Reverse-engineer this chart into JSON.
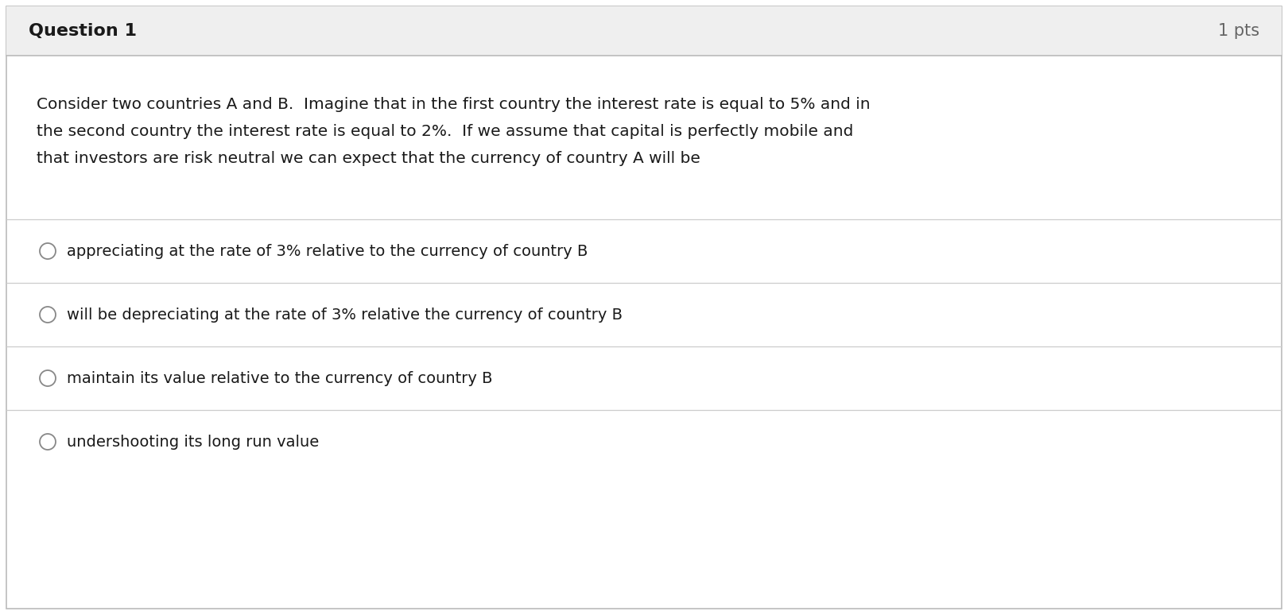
{
  "title": "Question 1",
  "pts": "1 pts",
  "question_text_line1": "Consider two countries A and B.  Imagine that in the first country the interest rate is equal to 5% and in",
  "question_text_line2": "the second country the interest rate is equal to 2%.  If we assume that capital is perfectly mobile and",
  "question_text_line3": "that investors are risk neutral we can expect that the currency of country A will be",
  "options": [
    "appreciating at the rate of 3% relative to the currency of country B",
    "will be depreciating at the rate of 3% relative the currency of country B",
    "maintain its value relative to the currency of country B",
    "undershooting its long run value"
  ],
  "fig_bg": "#ffffff",
  "header_bg": "#efefef",
  "body_bg": "#ffffff",
  "border_color": "#bbbbbb",
  "text_color": "#1a1a1a",
  "header_text_color": "#1a1a1a",
  "pts_text_color": "#666666",
  "divider_color": "#cccccc",
  "circle_edge_color": "#888888",
  "title_fontsize": 16,
  "pts_fontsize": 15,
  "question_fontsize": 14.5,
  "option_fontsize": 14
}
